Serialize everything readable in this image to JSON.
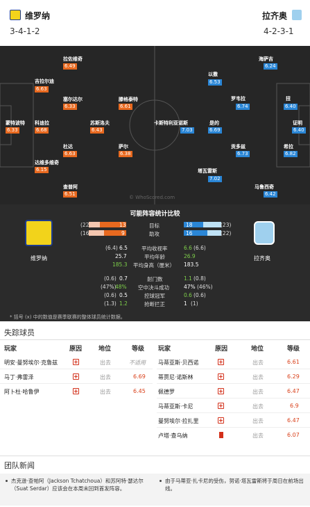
{
  "home": {
    "name": "维罗纳",
    "formation": "3-4-1-2"
  },
  "away": {
    "name": "拉齐奥",
    "formation": "4-2-3-1"
  },
  "watermark": "© WhoScored.com",
  "pitch": {
    "home_players": [
      {
        "name": "拉佐维奇",
        "rating": "6.49"
      },
      {
        "name": "吉拉尔迪",
        "rating": "6.63"
      },
      {
        "name": "塞尔达尔",
        "rating": "6.33"
      },
      {
        "name": "滕格泰特",
        "rating": "6.61"
      },
      {
        "name": "蒙特波特",
        "rating": "6.33"
      },
      {
        "name": "科迪拉",
        "rating": "6.68"
      },
      {
        "name": "苏斯洛夫",
        "rating": "6.43"
      },
      {
        "name": "杜达",
        "rating": "6.63"
      },
      {
        "name": "萨尔",
        "rating": "6.38"
      },
      {
        "name": "达维多维奇",
        "rating": "6.15"
      },
      {
        "name": "查普阿",
        "rating": "6.51"
      }
    ],
    "away_players": [
      {
        "name": "海萨吉",
        "rating": "6.24"
      },
      {
        "name": "以撒",
        "rating": "6.53"
      },
      {
        "name": "罗韦拉",
        "rating": "6.74"
      },
      {
        "name": "扭",
        "rating": "6.40"
      },
      {
        "name": "卡斯特利亚诺斯",
        "rating": "7.03"
      },
      {
        "name": "是的",
        "rating": "6.69"
      },
      {
        "name": "证明",
        "rating": "6.40"
      },
      {
        "name": "贡多兹",
        "rating": "6.73"
      },
      {
        "name": "希拉",
        "rating": "6.82"
      },
      {
        "name": "塔瓦雷斯",
        "rating": "7.02"
      },
      {
        "name": "马鲁西奇",
        "rating": "6.42"
      }
    ]
  },
  "stats": {
    "title": "可能阵容统计比较",
    "bars": [
      {
        "label": "目标",
        "home_rank": "(22)",
        "home": "13",
        "away": "18",
        "away_rank": "(23)",
        "home_frac": 0.42,
        "away_frac": 0.58
      },
      {
        "label": "助攻",
        "home_rank": "(16)",
        "home": "9",
        "away": "16",
        "away_rank": "(22)",
        "home_frac": 0.36,
        "away_frac": 0.64
      }
    ],
    "rows": [
      {
        "label": "平均收视率",
        "home_rank": "(6.4)",
        "home": "6.5",
        "away": "6.6",
        "away_rank": "(6.6)"
      },
      {
        "label": "平均年龄",
        "home_rank": "",
        "home": "25.7",
        "away": "26.9",
        "away_rank": ""
      },
      {
        "label": "平均身高（厘米）",
        "home_rank": "",
        "home": "185.3",
        "away": "183.5",
        "away_rank": ""
      },
      {
        "label": "射门数",
        "home_rank": "(0.6)",
        "home": "0.7",
        "away": "1.1",
        "away_rank": "(0.8)"
      },
      {
        "label": "空中决斗成功",
        "home_rank": "(47%)",
        "home": "48%",
        "away": "47%",
        "away_rank": "(46%)"
      },
      {
        "label": "控球冠军",
        "home_rank": "(0.6)",
        "home": "0.5",
        "away": "0.6",
        "away_rank": "(0.6)"
      },
      {
        "label": "抢断拦正",
        "home_rank": "(1.3)",
        "home": "1.2",
        "away": "1",
        "away_rank": "(1)"
      }
    ],
    "footnote": "* 括号 (x) 中的数值是赛季联赛的整体球员统计数据。"
  },
  "missing": {
    "title": "失踪球员",
    "headers": {
      "player": "玩家",
      "reason": "原因",
      "status": "地位",
      "rating": "等级"
    },
    "home": [
      {
        "player": "明安·曼努埃尔·克鲁兹",
        "status": "出去",
        "rating": "不适用"
      },
      {
        "player": "马丁·弗雷泽",
        "status": "出去",
        "rating": "6.69"
      },
      {
        "player": "阿卜杜·哈鲁伊",
        "status": "出去",
        "rating": "6.45"
      }
    ],
    "away": [
      {
        "player": "马蒂亚斯·贝西诺",
        "status": "出去",
        "rating": "6.61",
        "reason": "injury"
      },
      {
        "player": "蒂贾尼·诺斯林",
        "status": "出去",
        "rating": "6.29",
        "reason": "injury"
      },
      {
        "player": "佩德罗",
        "status": "出去",
        "rating": "6.47",
        "reason": "injury"
      },
      {
        "player": "马蒂亚斯·卡尼",
        "status": "出去",
        "rating": "6.9",
        "reason": "injury"
      },
      {
        "player": "曼努埃尔·拉扎里",
        "status": "出去",
        "rating": "6.47",
        "reason": "injury"
      },
      {
        "player": "卢塔·查乌纳",
        "status": "出去",
        "rating": "6.07",
        "reason": "card"
      }
    ]
  },
  "news": {
    "title": "团队新闻",
    "home": "杰克逊·查帕阿（Jackson Tchatchoua）和苏阿特·瑟达尔（Suat Serdar）应该会在本周末回到首发阵容。",
    "away": "由于马蒂亚·扎卡尼的受伤，努诺·塔瓦雷斯将于周日在前场出线。"
  },
  "colors": {
    "home_rating": "#e8691f",
    "away_rating": "#2a86d6",
    "home_green": "#7fd14a",
    "away_teal": "#4fc6e6",
    "accent_red": "#d3301a"
  }
}
